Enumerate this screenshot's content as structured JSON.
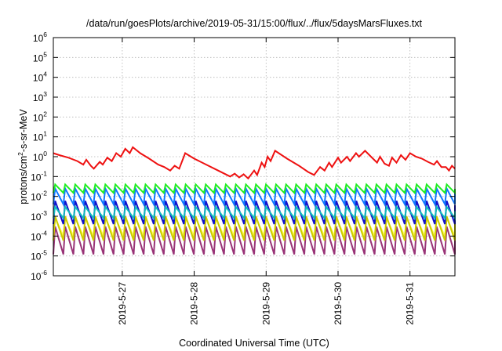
{
  "chart_data": {
    "type": "line",
    "title": "/data/run/goesPlots/archive/2019-05-31/15:00/flux/../flux/5daysMarsFluxes.txt",
    "xlabel": "Coordinated Universal Time (UTC)",
    "ylabel": {
      "base": "protons/cm",
      "sup": "2",
      "rest": "-s-sr-MeV"
    },
    "yscale": "log",
    "ylim": [
      1e-06,
      1000000.0
    ],
    "xlim": [
      "2019-05-26 01:00",
      "2019-05-31 15:00"
    ],
    "grid": true,
    "legend": "none",
    "x_ticks": [
      "2019-5-27",
      "2019-5-28",
      "2019-5-29",
      "2019-5-30",
      "2019-5-31"
    ],
    "y_ticks": [
      {
        "base": "10",
        "exp": "-6"
      },
      {
        "base": "10",
        "exp": "-5"
      },
      {
        "base": "10",
        "exp": "-4"
      },
      {
        "base": "10",
        "exp": "-3"
      },
      {
        "base": "10",
        "exp": "-2"
      },
      {
        "base": "10",
        "exp": "-1"
      },
      {
        "base": "10",
        "exp": "0"
      },
      {
        "base": "10",
        "exp": "1"
      },
      {
        "base": "10",
        "exp": "2"
      },
      {
        "base": "10",
        "exp": "3"
      },
      {
        "base": "10",
        "exp": "4"
      },
      {
        "base": "10",
        "exp": "5"
      },
      {
        "base": "10",
        "exp": "6"
      }
    ],
    "series": [
      {
        "color": "#ee1111",
        "kind": "main",
        "values": [
          [
            "2019-05-26 01:00",
            1.5
          ],
          [
            "2019-05-26 03:00",
            1.2
          ],
          [
            "2019-05-26 06:00",
            0.9
          ],
          [
            "2019-05-26 09:00",
            0.6
          ],
          [
            "2019-05-26 11:00",
            0.4
          ],
          [
            "2019-05-26 12:00",
            0.7
          ],
          [
            "2019-05-26 13:30",
            0.35
          ],
          [
            "2019-05-26 14:30",
            0.25
          ],
          [
            "2019-05-26 16:30",
            0.55
          ],
          [
            "2019-05-26 17:30",
            0.4
          ],
          [
            "2019-05-26 19:00",
            0.9
          ],
          [
            "2019-05-26 20:30",
            0.6
          ],
          [
            "2019-05-26 22:00",
            1.5
          ],
          [
            "2019-05-26 23:30",
            1.0
          ],
          [
            "2019-05-27 01:00",
            2.5
          ],
          [
            "2019-05-27 02:30",
            1.5
          ],
          [
            "2019-05-27 03:30",
            3.0
          ],
          [
            "2019-05-27 06:00",
            1.5
          ],
          [
            "2019-05-27 09:00",
            0.8
          ],
          [
            "2019-05-27 12:00",
            0.4
          ],
          [
            "2019-05-27 14:00",
            0.3
          ],
          [
            "2019-05-27 16:00",
            0.2
          ],
          [
            "2019-05-27 17:30",
            0.35
          ],
          [
            "2019-05-27 19:00",
            0.25
          ],
          [
            "2019-05-27 21:00",
            1.5
          ],
          [
            "2019-05-28 00:00",
            0.8
          ],
          [
            "2019-05-28 04:00",
            0.4
          ],
          [
            "2019-05-28 08:00",
            0.2
          ],
          [
            "2019-05-28 12:00",
            0.1
          ],
          [
            "2019-05-28 13:30",
            0.14
          ],
          [
            "2019-05-28 15:00",
            0.09
          ],
          [
            "2019-05-28 16:30",
            0.13
          ],
          [
            "2019-05-28 18:00",
            0.08
          ],
          [
            "2019-05-28 20:00",
            0.2
          ],
          [
            "2019-05-28 21:00",
            0.12
          ],
          [
            "2019-05-28 22:30",
            0.5
          ],
          [
            "2019-05-28 23:30",
            0.3
          ],
          [
            "2019-05-29 00:30",
            1.0
          ],
          [
            "2019-05-29 01:30",
            0.6
          ],
          [
            "2019-05-29 03:00",
            2.0
          ],
          [
            "2019-05-29 07:00",
            0.8
          ],
          [
            "2019-05-29 11:00",
            0.35
          ],
          [
            "2019-05-29 14:00",
            0.17
          ],
          [
            "2019-05-29 16:00",
            0.12
          ],
          [
            "2019-05-29 18:00",
            0.3
          ],
          [
            "2019-05-29 19:30",
            0.2
          ],
          [
            "2019-05-29 21:00",
            0.5
          ],
          [
            "2019-05-29 22:00",
            0.3
          ],
          [
            "2019-05-30 00:00",
            0.9
          ],
          [
            "2019-05-30 01:00",
            0.5
          ],
          [
            "2019-05-30 03:00",
            1.0
          ],
          [
            "2019-05-30 04:00",
            0.6
          ],
          [
            "2019-05-30 06:00",
            1.5
          ],
          [
            "2019-05-30 07:00",
            1.0
          ],
          [
            "2019-05-30 09:00",
            2.0
          ],
          [
            "2019-05-30 11:00",
            1.0
          ],
          [
            "2019-05-30 13:00",
            0.5
          ],
          [
            "2019-05-30 14:00",
            1.0
          ],
          [
            "2019-05-30 15:30",
            0.45
          ],
          [
            "2019-05-30 17:00",
            0.35
          ],
          [
            "2019-05-30 18:00",
            0.9
          ],
          [
            "2019-05-30 19:30",
            0.5
          ],
          [
            "2019-05-30 21:00",
            1.2
          ],
          [
            "2019-05-30 22:30",
            0.7
          ],
          [
            "2019-05-31 00:00",
            1.5
          ],
          [
            "2019-05-31 02:00",
            1.0
          ],
          [
            "2019-05-31 04:00",
            0.8
          ],
          [
            "2019-05-31 06:00",
            0.55
          ],
          [
            "2019-05-31 08:00",
            0.4
          ],
          [
            "2019-05-31 09:00",
            0.6
          ],
          [
            "2019-05-31 10:30",
            0.3
          ],
          [
            "2019-05-31 12:00",
            0.3
          ],
          [
            "2019-05-31 13:00",
            0.2
          ],
          [
            "2019-05-31 14:00",
            0.35
          ],
          [
            "2019-05-31 15:00",
            0.25
          ]
        ]
      },
      {
        "color": "#22ee22",
        "kind": "saw",
        "high": 0.04,
        "low": 0.015,
        "teeth": 40
      },
      {
        "color": "#1177ff",
        "kind": "saw",
        "high": 0.025,
        "low": 0.004,
        "teeth": 40
      },
      {
        "color": "#11bbbb",
        "kind": "saw",
        "high": 0.003,
        "low": 0.0008,
        "teeth": 40
      },
      {
        "color": "#1111cc",
        "kind": "saw",
        "high": 0.006,
        "low": 0.0004,
        "teeth": 40
      },
      {
        "color": "#cccc00",
        "kind": "saw",
        "high": 0.001,
        "low": 6e-05,
        "teeth": 40
      },
      {
        "color": "#ffff55",
        "kind": "saw",
        "high": 0.0008,
        "low": 0.0001,
        "teeth": 40
      },
      {
        "color": "#993377",
        "kind": "saw",
        "high": 0.0003,
        "low": 1.2e-05,
        "teeth": 40
      }
    ]
  }
}
